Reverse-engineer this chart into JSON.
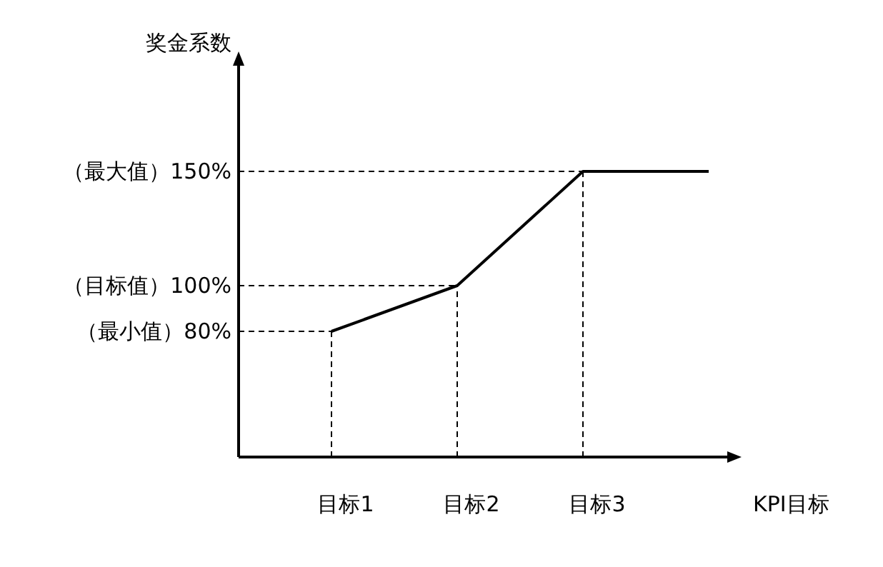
{
  "chart_data": {
    "type": "line",
    "ylabel": "奖金系数",
    "xlabel": "KPI目标",
    "categories": [
      "目标1",
      "目标2",
      "目标3",
      null
    ],
    "series": [
      {
        "color": "#000000",
        "values": [
          80,
          100,
          150,
          150
        ]
      }
    ],
    "ylim": [
      25,
      200
    ],
    "yticks": [
      {
        "value": 80,
        "label": "（最小值）80%"
      },
      {
        "value": 100,
        "label": "（目标值）100%"
      },
      {
        "value": 150,
        "label": "（最大值）150%"
      }
    ],
    "ref_lines": [
      {
        "axis": "y",
        "value": 80,
        "line_style": "dashed"
      },
      {
        "axis": "y",
        "value": 100,
        "line_style": "dashed"
      },
      {
        "axis": "y",
        "value": 150,
        "line_style": "dashed"
      },
      {
        "axis": "x",
        "value": "目标1",
        "line_style": "dashed"
      },
      {
        "axis": "x",
        "value": "目标2",
        "line_style": "dashed"
      },
      {
        "axis": "x",
        "value": "目标3",
        "line_style": "dashed"
      }
    ],
    "grid": false,
    "marker": "none",
    "line_style": "solid"
  }
}
